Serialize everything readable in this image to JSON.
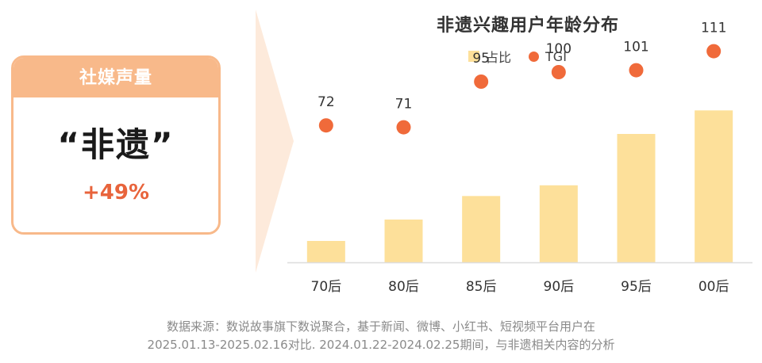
{
  "card": {
    "header": "社媒声量",
    "title": "“非遗”",
    "change": "+49%"
  },
  "colors": {
    "card_accent": "#f8b98a",
    "change": "#e8643c",
    "bar": "#fde09a",
    "dot": "#f06a3a"
  },
  "chart_data": {
    "type": "bar",
    "title": "非遗兴趣用户年龄分布",
    "categories": [
      "70后",
      "80后",
      "85后",
      "90后",
      "95后",
      "00后"
    ],
    "series": [
      {
        "name": "占比",
        "type": "bar",
        "values": [
          5,
          10,
          15.5,
          18,
          30,
          35.5
        ]
      },
      {
        "name": "TGI",
        "type": "scatter",
        "values": [
          72,
          71,
          95,
          100,
          101,
          111
        ]
      }
    ],
    "legend": "top",
    "grid": false,
    "bar_ylim": [
      0,
      50
    ],
    "tgi_ylim": [
      0,
      150
    ]
  },
  "source": {
    "line1": "数据来源：数说故事旗下数说聚合，基于新闻、微博、小红书、短视频平台用户在",
    "line2": "2025.01.13-2025.02.16对比. 2024.01.22-2024.02.25期间，与非遗相关内容的分析"
  }
}
